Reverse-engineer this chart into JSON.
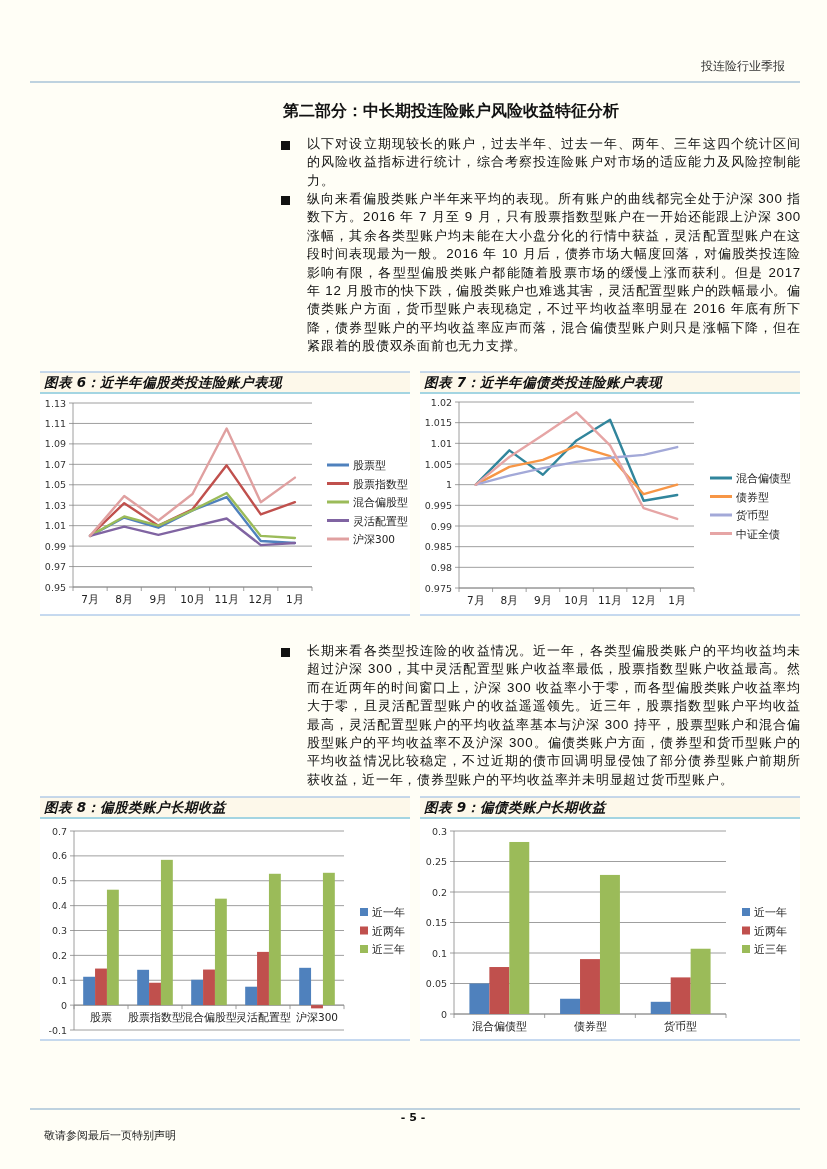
{
  "chart_data": [
    {
      "type": "other",
      "annotations": [
        "投连险行业季报",
        "第二部分：中长期投连险账户风险收益特征分析",
        "以下对设立期现较长的账户，过去半年、过去一年、两年、三年这四个统计区间的风险收益指标进行统计，综合考察投连险账户对市场的适应能力及风险控制能力。",
        "纵向来看偏股类账户半年来平均的表现。所有账户的曲线都完全处于沪深 300 指数下方。2016 年 7 月至 9 月，只有股票指数型账户在一开始还能跟上沪深 300 涨幅，其余各类型账户均未能在大小盘分化的行情中获益，灵活配置型账户在这段时间表现最为一般。2016 年 10 月后，债券市场大幅度回落，对偏股类投连险影响有限，各型型偏股类账户都能随着股票市场的缓慢上涨而获利。但是 2017 年 12 月股市的快下跌，偏股类账户也难逃其害，灵活配置型账户的跌幅最小。偏债类账户方面，货币型账户表现稳定，不过平均收益率明显在 2016 年底有所下降，债券型账户的平均收益率应声而落，混合偏债型账户则只是涨幅下降，但在紧跟着的股债双杀面前也无力支撑。",
        "长期来看各类型投连险的收益情况。近一年，各类型偏股类账户的平均收益均未超过沪深 300，其中灵活配置型账户收益率最低，股票指数型账户收益最高。然而在近两年的时间窗口上，沪深 300 收益率小于零，而各型偏股类账户收益率均大于零，且灵活配置型账户的收益遥遥领先。近三年，股票指数型账户平均收益最高，灵活配置型账户的平均收益率基本与沪深 300 持平，股票型账户和混合偏股型账户的平均收益率不及沪深 300。偏债类账户方面，债券型和货币型账户的平均收益情况比较稳定，不过近期的债市回调明显侵蚀了部分债券型账户前期所获收益，近一年，债券型账户的平均收益率并未明显超过货币型账户。",
        "- 5 -",
        "敬请参阅最后一页特别声明"
      ]
    },
    {
      "type": "line",
      "title": "图表 6：近半年偏股类投连险账户表现",
      "categories": [
        "7月",
        "8月",
        "9月",
        "10月",
        "11月",
        "12月",
        "1月"
      ],
      "ylim": [
        0.95,
        1.13
      ],
      "yticks": [
        0.95,
        0.97,
        0.99,
        1.01,
        1.03,
        1.05,
        1.07,
        1.09,
        1.11,
        1.13
      ],
      "grid": "y",
      "legend": "right",
      "series": [
        {
          "name": "股票型",
          "color": "#4f81bd",
          "values": [
            1,
            1.018,
            1.008,
            1.025,
            1.038,
            0.995,
            0.993
          ]
        },
        {
          "name": "股票指数型",
          "color": "#c0504d",
          "values": [
            1,
            1.032,
            1.01,
            1.026,
            1.069,
            1.021,
            1.033
          ]
        },
        {
          "name": "混合偏股型",
          "color": "#9bbb59",
          "values": [
            1,
            1.019,
            1.01,
            1.025,
            1.042,
            1.0,
            0.998
          ]
        },
        {
          "name": "灵活配置型",
          "color": "#8064a2",
          "values": [
            1,
            1.009,
            1.001,
            1.009,
            1.017,
            0.991,
            0.993
          ]
        },
        {
          "name": "沪深300",
          "color": "#e0a0a0",
          "values": [
            1,
            1.039,
            1.015,
            1.041,
            1.105,
            1.033,
            1.057
          ]
        }
      ]
    },
    {
      "type": "line",
      "title": "图表 7：近半年偏债类投连险账户表现",
      "categories": [
        "7月",
        "8月",
        "9月",
        "10月",
        "11月",
        "12月",
        "1月"
      ],
      "ylim": [
        0.975,
        1.02
      ],
      "yticks": [
        0.975,
        0.98,
        0.985,
        0.99,
        0.995,
        1,
        1.005,
        1.01,
        1.015,
        1.02
      ],
      "grid": "y",
      "legend": "right",
      "series": [
        {
          "name": "混合偏债型",
          "color": "#31859c",
          "values": [
            1,
            1.0083,
            1.0024,
            1.0107,
            1.0157,
            0.9961,
            0.9975
          ]
        },
        {
          "name": "债券型",
          "color": "#f79646",
          "values": [
            1,
            1.0043,
            1.006,
            1.0094,
            1.0069,
            0.9977,
            1.0
          ]
        },
        {
          "name": "货币型",
          "color": "#a3a9d8",
          "values": [
            1,
            1.0022,
            1.004,
            1.0055,
            1.0065,
            1.0072,
            1.0091
          ]
        },
        {
          "name": "中证全债",
          "color": "#e6a5a5",
          "values": [
            1,
            1.0067,
            1.012,
            1.0175,
            1.0095,
            0.9943,
            0.9917
          ]
        }
      ]
    },
    {
      "type": "bar",
      "title": "图表 8：偏股类账户长期收益",
      "categories": [
        "股票",
        "股票指数型",
        "混合偏股型",
        "灵活配置型",
        "沪深300"
      ],
      "ylim": [
        -0.1,
        0.7
      ],
      "yticks": [
        -0.1,
        0,
        0.1,
        0.2,
        0.3,
        0.4,
        0.5,
        0.6,
        0.7
      ],
      "grid": "y",
      "legend": "right",
      "series": [
        {
          "name": "近一年",
          "color": "#4f81bd",
          "values": [
            0.114,
            0.142,
            0.102,
            0.074,
            0.15
          ]
        },
        {
          "name": "近两年",
          "color": "#c0504d",
          "values": [
            0.147,
            0.09,
            0.143,
            0.214,
            -0.013
          ]
        },
        {
          "name": "近三年",
          "color": "#9bbb59",
          "values": [
            0.464,
            0.584,
            0.428,
            0.528,
            0.532
          ]
        }
      ]
    },
    {
      "type": "bar",
      "title": "图表 9：偏债类账户长期收益",
      "categories": [
        "混合偏债型",
        "债券型",
        "货币型"
      ],
      "ylim": [
        0,
        0.3
      ],
      "yticks": [
        0,
        0.05,
        0.1,
        0.15,
        0.2,
        0.25,
        0.3
      ],
      "grid": "y",
      "legend": "right",
      "series": [
        {
          "name": "近一年",
          "color": "#4f81bd",
          "values": [
            0.05,
            0.025,
            0.02
          ]
        },
        {
          "name": "近两年",
          "color": "#c0504d",
          "values": [
            0.077,
            0.09,
            0.06
          ]
        },
        {
          "name": "近三年",
          "color": "#9bbb59",
          "values": [
            0.282,
            0.228,
            0.107
          ]
        }
      ]
    }
  ]
}
